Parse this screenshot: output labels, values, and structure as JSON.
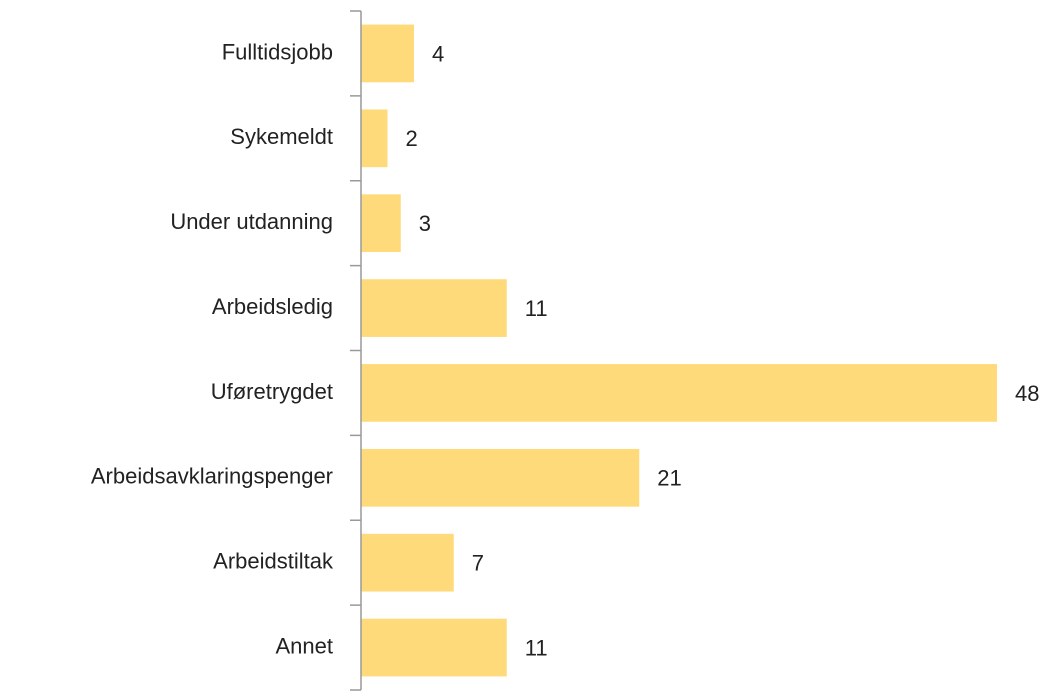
{
  "chart_data": {
    "type": "barh",
    "categories": [
      "Fulltidsjobb",
      "Sykemeldt",
      "Under utdanning",
      "Arbeidsledig",
      "Uføretrygdet",
      "Arbeidsavklaringspenger",
      "Arbeidstiltak",
      "Annet"
    ],
    "values": [
      4,
      2,
      3,
      11,
      48,
      21,
      7,
      11
    ],
    "color": "#ffda7a"
  }
}
